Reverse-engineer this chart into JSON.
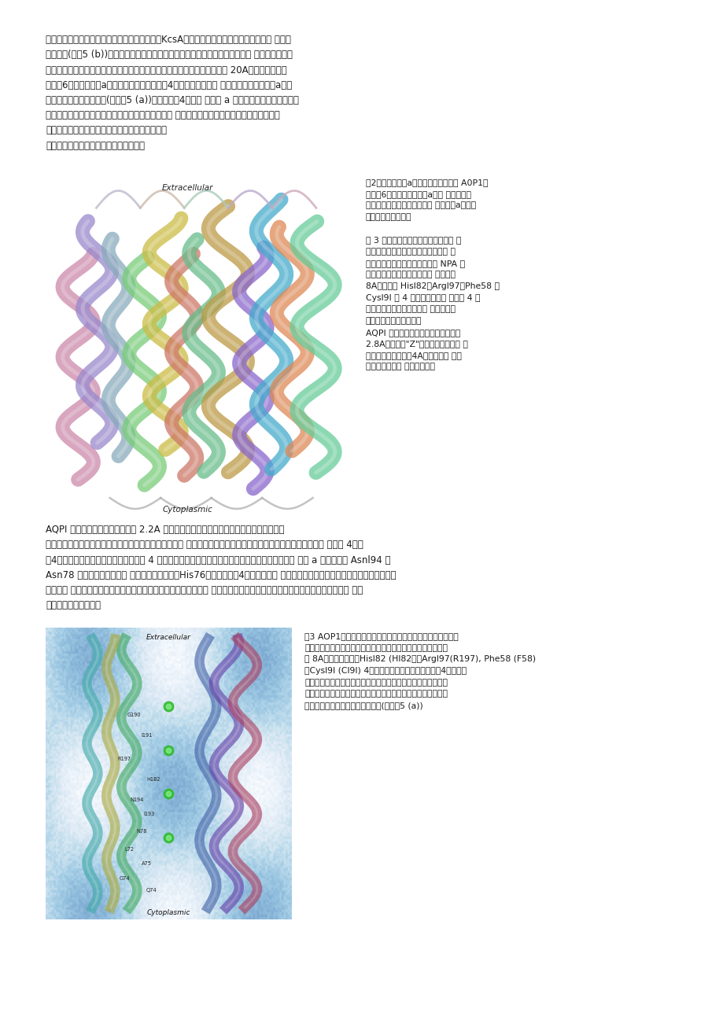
{
  "background_color": "#ffffff",
  "page_width": 9.2,
  "page_height": 13.02,
  "text_color": "#1a1a1a",
  "body_fs": 8.5,
  "small_fs": 7.8,
  "L": 0.063,
  "R": 0.937,
  "para1_lines": [
    "他小分子或离子通道蛋白中起关键作用。例如，KcsA钾离子通道蛋白的过滤管就是由这种 结构单",
    "元构成的(见图5 (b))。在水通道蛋白结构解出之后，这种结构单元特征引起了膜 蛋白结构生物学",
    "和蛋白质结构推算领域的学者们的极大兴趣。水通道蛋白的通道管部分长约 20A，参与构成通道",
    "管的是6个贯穿膜的长a螺旋中靠近四聚体中心的4个螺旋，以及上面 所提到的由两个对顶短a螺旋",
    "所延生出的两个松散链条(参见图5 (a))。通道管由4个贯穿 膜的长 a 螺旋参与构成的部分多为非",
    "极性氨基酸组成，而由两个松散链条参与构成的部分 多为极性氨基酸组成。如果从中间将之纵劈",
    "为两半，通道管可视为一半亲水，而另一半疏水。",
    "整体看来，通道管不具有很好的亲水性。"
  ],
  "cap1_lines": [
    "图2水通道蛋白的a螺旋结构构造。一个 A0P1分",
    "子是由6个贯穿膜两面的长a螺旋 构成基本骨",
    "架，其间还有两个嵌入但不贯 穿膜的短a螺旋几",
    "乎顶对顶地放置着。",
    "",
    "图 3 中蓝色斑点所示为水通道蛋白的 通",
    "道管部分。与原先的猜测有所不同， 通",
    "道管的限制口位置不在靠近两个 NPA 组",
    "单元的管道中点，而是位于其 上方大约",
    "8A处。狭口 Hisl82，Argl97，Phe58 和",
    "Cysl9I 这 4 个氨基酸残基构 成。这 4 个",
    "氨基酸构成的狭口对于水通 道蛋白对水",
    "分子筛选机理至关重要。",
    "AQPI 水通道的通道管狭口处直径约为",
    "2.8A，有少许\"Z\"型扭折，除此之外 的",
    "大部分管道的宽度为4A左右，走向 与膜",
    "面基本垂直。用 于衍射分析的"
  ],
  "para2_line1": "AQPI 蛋白的三维晶体可以给出比 2.2A 还低的衍射斑点，从解出的电子势密度图中可以清",
  "para2_lines": [
    "AQPI 蛋白的三维晶体可以给出比 2.2A 还低的衍射斑点，从解出的电子势密度图中可以清",
    "楚地看到陷嵌在通道管中的水分子。水分子在通道管中的 位置对于我们理解水通道的筛选机理有重要意义。通道管 中在图 4所示",
    "的4个绿色球珠的位置上有了水分子。这 4 个位置分别处于狭口附近内侧，通道中心两边分别靠近两 个短 a 螺旋顶部的 Asnl94 和",
    "Asn78 的位置，以及通道管 下部与狭口相对应的His76附近。尽管这4个水分子呈直 线状排列，但由于水分子的相对取向和距离等因",
    "素限制， 它们之间不能形成连续的氢键链。对沿着通道管方向的氢 基酸的亲水性分析表明，嵌镶在通道管中的水分子正好处 于亲",
    "水性较好的峰点附近。"
  ],
  "cap2_lines": [
    "图3 AOP1水通道蛋白的通道结构及通道中水分子的位置。蓝色",
    "斑点所示为水通道蛋白的通道管部分。通道的限制口位于中点上",
    "面 8A左右的地方，由Hisl82 (Hl82），Argl97(R197), Phe58 (F58)",
    "和Cysl9I (Cl9I) 4个氨基酸残基构成。通道管中的4个绿色球",
    "珠所示为陷嵌其中的水分子位置。这些水分子附近的氨基酸残基",
    "为其提供近似水环境。这些氨基酸残基主要来自于从两个不穿膜",
    "的小螺旋的顶端延生出的松散链条(参见图5 (a))"
  ],
  "img1_label_top": "Extracellular",
  "img1_label_bottom": "Cytoplasmic",
  "img2_label_top": "Extracellular",
  "img2_label_bottom": "Cytoplasmic",
  "helix_colors": [
    "#cc88aa",
    "#9988cc",
    "#88aabb",
    "#77cc77",
    "#ccbb44",
    "#cc7766",
    "#66bb88",
    "#bb9944",
    "#8866cc",
    "#44aacc",
    "#dd8855",
    "#66cc99"
  ],
  "helix_colors2": [
    "#4466aa",
    "#6644aa",
    "#aa4466",
    "#44aa66",
    "#aaaa44",
    "#44aaaa"
  ]
}
